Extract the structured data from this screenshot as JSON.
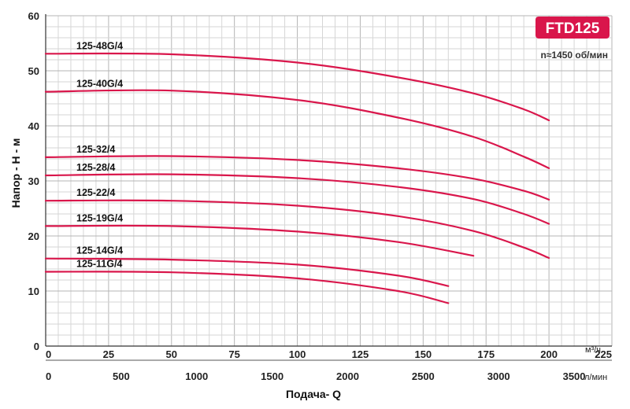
{
  "chart_data": {
    "type": "line",
    "model": "FTD125",
    "speed": "n≈1450 об/мин",
    "ylabel": "Напор - Н - м",
    "xlabel": "Подача- Q",
    "ylim": [
      0,
      60
    ],
    "y_ticks": [
      "0",
      "10",
      "20",
      "30",
      "40",
      "50",
      "60"
    ],
    "xlim": [
      0,
      225
    ],
    "x_unit_primary": "м³/ч",
    "x_ticks_primary": [
      "0",
      "25",
      "50",
      "75",
      "100",
      "125",
      "150",
      "175",
      "200",
      "225"
    ],
    "x_unit_secondary": "л/мин",
    "x_ticks_secondary": [
      "0",
      "500",
      "1000",
      "1500",
      "2000",
      "2500",
      "3000",
      "3500"
    ],
    "secondary_ticks_lpm": [
      0,
      500,
      1000,
      1500,
      2000,
      2500,
      3000,
      3500
    ],
    "grid": true,
    "curve_color": "#d9164b",
    "badge_color": "#d9164b",
    "series": [
      {
        "name": "125-48G/4",
        "x": [
          0,
          50,
          100,
          140,
          170,
          190,
          200
        ],
        "y": [
          53.1,
          53.0,
          51.5,
          48.8,
          45.9,
          43.0,
          41.0
        ]
      },
      {
        "name": "125-40G/4",
        "x": [
          0,
          50,
          100,
          140,
          170,
          190,
          200
        ],
        "y": [
          46.2,
          46.4,
          44.7,
          41.5,
          38.0,
          34.4,
          32.3
        ]
      },
      {
        "name": "125-32/4",
        "x": [
          0,
          50,
          100,
          140,
          170,
          190,
          200
        ],
        "y": [
          34.3,
          34.5,
          33.8,
          32.3,
          30.4,
          28.2,
          26.6
        ]
      },
      {
        "name": "125-28/4",
        "x": [
          0,
          50,
          100,
          140,
          170,
          190,
          200
        ],
        "y": [
          31.0,
          31.2,
          30.5,
          28.9,
          26.7,
          24.0,
          22.2
        ]
      },
      {
        "name": "125-22/4",
        "x": [
          0,
          50,
          100,
          140,
          170,
          190,
          200
        ],
        "y": [
          26.4,
          26.4,
          25.5,
          23.6,
          20.9,
          17.9,
          16.0
        ]
      },
      {
        "name": "125-19G/4",
        "x": [
          0,
          50,
          100,
          140,
          170
        ],
        "y": [
          21.8,
          21.8,
          20.8,
          18.9,
          16.4
        ]
      },
      {
        "name": "125-14G/4",
        "x": [
          0,
          50,
          100,
          140,
          160
        ],
        "y": [
          15.9,
          15.7,
          14.8,
          12.8,
          10.9
        ]
      },
      {
        "name": "125-11G/4",
        "x": [
          0,
          50,
          100,
          140,
          160
        ],
        "y": [
          13.5,
          13.4,
          12.3,
          10.0,
          7.8
        ]
      }
    ]
  }
}
